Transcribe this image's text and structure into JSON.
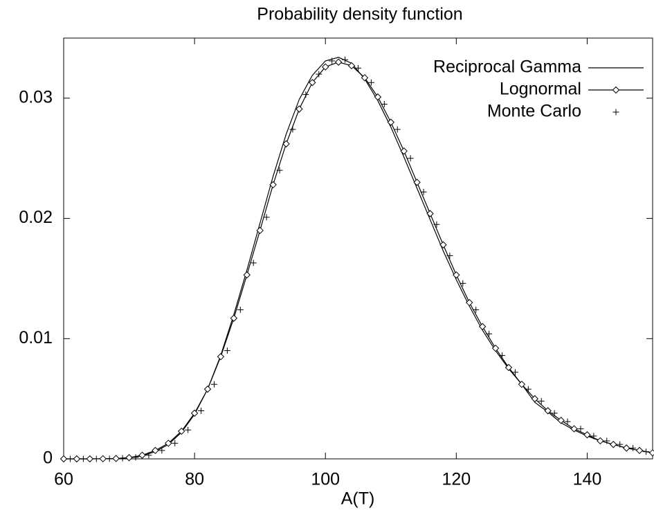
{
  "chart_data": {
    "type": "line",
    "title": "Probability density function",
    "x_label": "A(T)",
    "xlim": [
      60,
      150
    ],
    "ylim": [
      0,
      0.035
    ],
    "xticks": [
      60,
      80,
      100,
      120,
      140
    ],
    "yticks": [
      0,
      0.01,
      0.02,
      0.03
    ],
    "legend": "top-right",
    "series": [
      {
        "name": "Reciprocal Gamma",
        "color": "#000000",
        "style": "line",
        "x": [
          60,
          62,
          64,
          66,
          68,
          70,
          72,
          74,
          76,
          78,
          80,
          82,
          84,
          86,
          88,
          90,
          92,
          94,
          96,
          98,
          100,
          102,
          104,
          106,
          108,
          110,
          112,
          114,
          116,
          118,
          120,
          122,
          124,
          126,
          128,
          130,
          132,
          134,
          136,
          138,
          140,
          142,
          144,
          146,
          148,
          150
        ],
        "values": [
          0,
          0,
          0,
          1e-05,
          3e-05,
          0.0001,
          0.00025,
          0.0006,
          0.0012,
          0.0022,
          0.0037,
          0.0058,
          0.0086,
          0.012,
          0.0157,
          0.0196,
          0.0235,
          0.027,
          0.0299,
          0.0319,
          0.0331,
          0.0334,
          0.0329,
          0.0316,
          0.0298,
          0.0276,
          0.0251,
          0.0225,
          0.0199,
          0.0173,
          0.0149,
          0.0127,
          0.0107,
          0.009,
          0.0075,
          0.0062,
          0.0047,
          0.0039,
          0.003,
          0.0024,
          0.0019,
          0.0015,
          0.0012,
          0.0009,
          0.0007,
          0.0005
        ]
      },
      {
        "name": "Lognormal",
        "color": "#000000",
        "style": "linespoints",
        "x": [
          60,
          62,
          64,
          66,
          68,
          70,
          72,
          74,
          76,
          78,
          80,
          82,
          84,
          86,
          88,
          90,
          92,
          94,
          96,
          98,
          100,
          102,
          104,
          106,
          108,
          110,
          112,
          114,
          116,
          118,
          120,
          122,
          124,
          126,
          128,
          130,
          132,
          134,
          136,
          138,
          140,
          142,
          144,
          146,
          148,
          150
        ],
        "values": [
          0,
          0,
          0,
          1e-05,
          3e-05,
          0.0001,
          0.0003,
          0.0007,
          0.0013,
          0.0023,
          0.0038,
          0.0058,
          0.0085,
          0.0117,
          0.0153,
          0.019,
          0.0228,
          0.0262,
          0.0291,
          0.0313,
          0.0326,
          0.033,
          0.0327,
          0.0317,
          0.0301,
          0.028,
          0.0256,
          0.023,
          0.0204,
          0.0178,
          0.0153,
          0.013,
          0.011,
          0.0092,
          0.0076,
          0.0062,
          0.005,
          0.004,
          0.0032,
          0.0025,
          0.002,
          0.0015,
          0.0012,
          0.0009,
          0.0007,
          0.0005
        ]
      },
      {
        "name": "Monte Carlo",
        "color": "#000000",
        "style": "points",
        "x": [
          61,
          63,
          65,
          67,
          69,
          71,
          73,
          75,
          77,
          79,
          81,
          83,
          85,
          87,
          89,
          91,
          93,
          95,
          97,
          99,
          101,
          103,
          105,
          107,
          109,
          111,
          113,
          115,
          117,
          119,
          121,
          123,
          125,
          127,
          129,
          131,
          133,
          135,
          137,
          139,
          141,
          143,
          145,
          147,
          149
        ],
        "values": [
          0,
          0,
          0,
          1e-05,
          5e-05,
          0.00012,
          0.0003,
          0.0007,
          0.0013,
          0.0024,
          0.004,
          0.0062,
          0.009,
          0.0124,
          0.0163,
          0.0201,
          0.024,
          0.0274,
          0.0303,
          0.032,
          0.0331,
          0.0332,
          0.0325,
          0.0313,
          0.0295,
          0.0274,
          0.025,
          0.0222,
          0.0195,
          0.0169,
          0.0146,
          0.0124,
          0.0104,
          0.0086,
          0.0072,
          0.0058,
          0.0048,
          0.0038,
          0.0031,
          0.0025,
          0.0019,
          0.0015,
          0.0012,
          0.0009,
          0.0006
        ]
      }
    ]
  }
}
